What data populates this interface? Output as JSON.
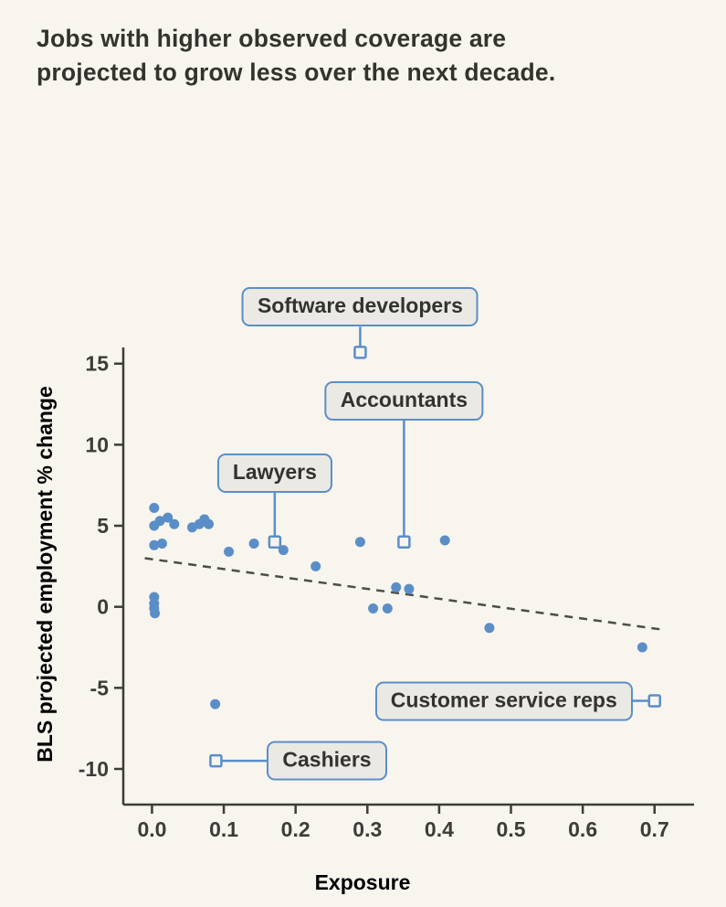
{
  "header": {
    "title_lines": [
      "Jobs with higher observed coverage are",
      "projected to grow less over the next decade."
    ]
  },
  "chart_data": {
    "type": "scatter",
    "title": "Jobs with higher observed coverage are projected to grow less over the next decade.",
    "xlabel": "Exposure",
    "ylabel": "BLS projected employment % change",
    "xlim": [
      -0.04,
      0.755
    ],
    "ylim": [
      -12.2,
      16.0
    ],
    "xticks": [
      "0.0",
      "0.1",
      "0.2",
      "0.3",
      "0.4",
      "0.5",
      "0.6",
      "0.7"
    ],
    "yticks": [
      "15",
      "10",
      "5",
      "0",
      "-5",
      "-10"
    ],
    "grid": false,
    "legend": "none",
    "points": [
      [
        0.003,
        6.1
      ],
      [
        0.003,
        5.0
      ],
      [
        0.011,
        5.3
      ],
      [
        0.003,
        3.8
      ],
      [
        0.014,
        3.9
      ],
      [
        0.003,
        0.6
      ],
      [
        0.003,
        0.2
      ],
      [
        0.003,
        -0.1
      ],
      [
        0.004,
        -0.4
      ],
      [
        0.022,
        5.5
      ],
      [
        0.031,
        5.1
      ],
      [
        0.056,
        4.9
      ],
      [
        0.066,
        5.1
      ],
      [
        0.073,
        5.4
      ],
      [
        0.079,
        5.1
      ],
      [
        0.088,
        -6.0
      ],
      [
        0.107,
        3.4
      ],
      [
        0.142,
        3.9
      ],
      [
        0.183,
        3.5
      ],
      [
        0.228,
        2.5
      ],
      [
        0.29,
        4.0
      ],
      [
        0.308,
        -0.1
      ],
      [
        0.328,
        -0.1
      ],
      [
        0.34,
        1.2
      ],
      [
        0.358,
        1.1
      ],
      [
        0.408,
        4.1
      ],
      [
        0.47,
        -1.3
      ],
      [
        0.683,
        -2.5
      ]
    ],
    "labeled_points": [
      {
        "label": "Software developers",
        "x": 0.29,
        "y": 15.7,
        "placement": "above",
        "offset": 28
      },
      {
        "label": "Accountants",
        "x": 0.351,
        "y": 4.0,
        "placement": "above",
        "offset": 133
      },
      {
        "label": "Lawyers",
        "x": 0.171,
        "y": 4.0,
        "placement": "above",
        "offset": 54
      },
      {
        "label": "Customer service reps",
        "x": 0.7,
        "y": -5.8,
        "placement": "left",
        "offset": 24
      },
      {
        "label": "Cashiers",
        "x": 0.089,
        "y": -9.5,
        "placement": "right",
        "offset": 56
      }
    ],
    "trendline": {
      "style": "dashed",
      "x": [
        -0.01,
        0.71
      ],
      "y": [
        3.0,
        -1.4
      ]
    },
    "colors": {
      "background": "#f8f5ef",
      "dot": "#5b8ec7",
      "callout_border": "#5b8ec7",
      "callout_background": "#ebe9e3",
      "trendline": "#4c4c48",
      "axis": "#3c3c38",
      "text": "#33332e"
    }
  }
}
